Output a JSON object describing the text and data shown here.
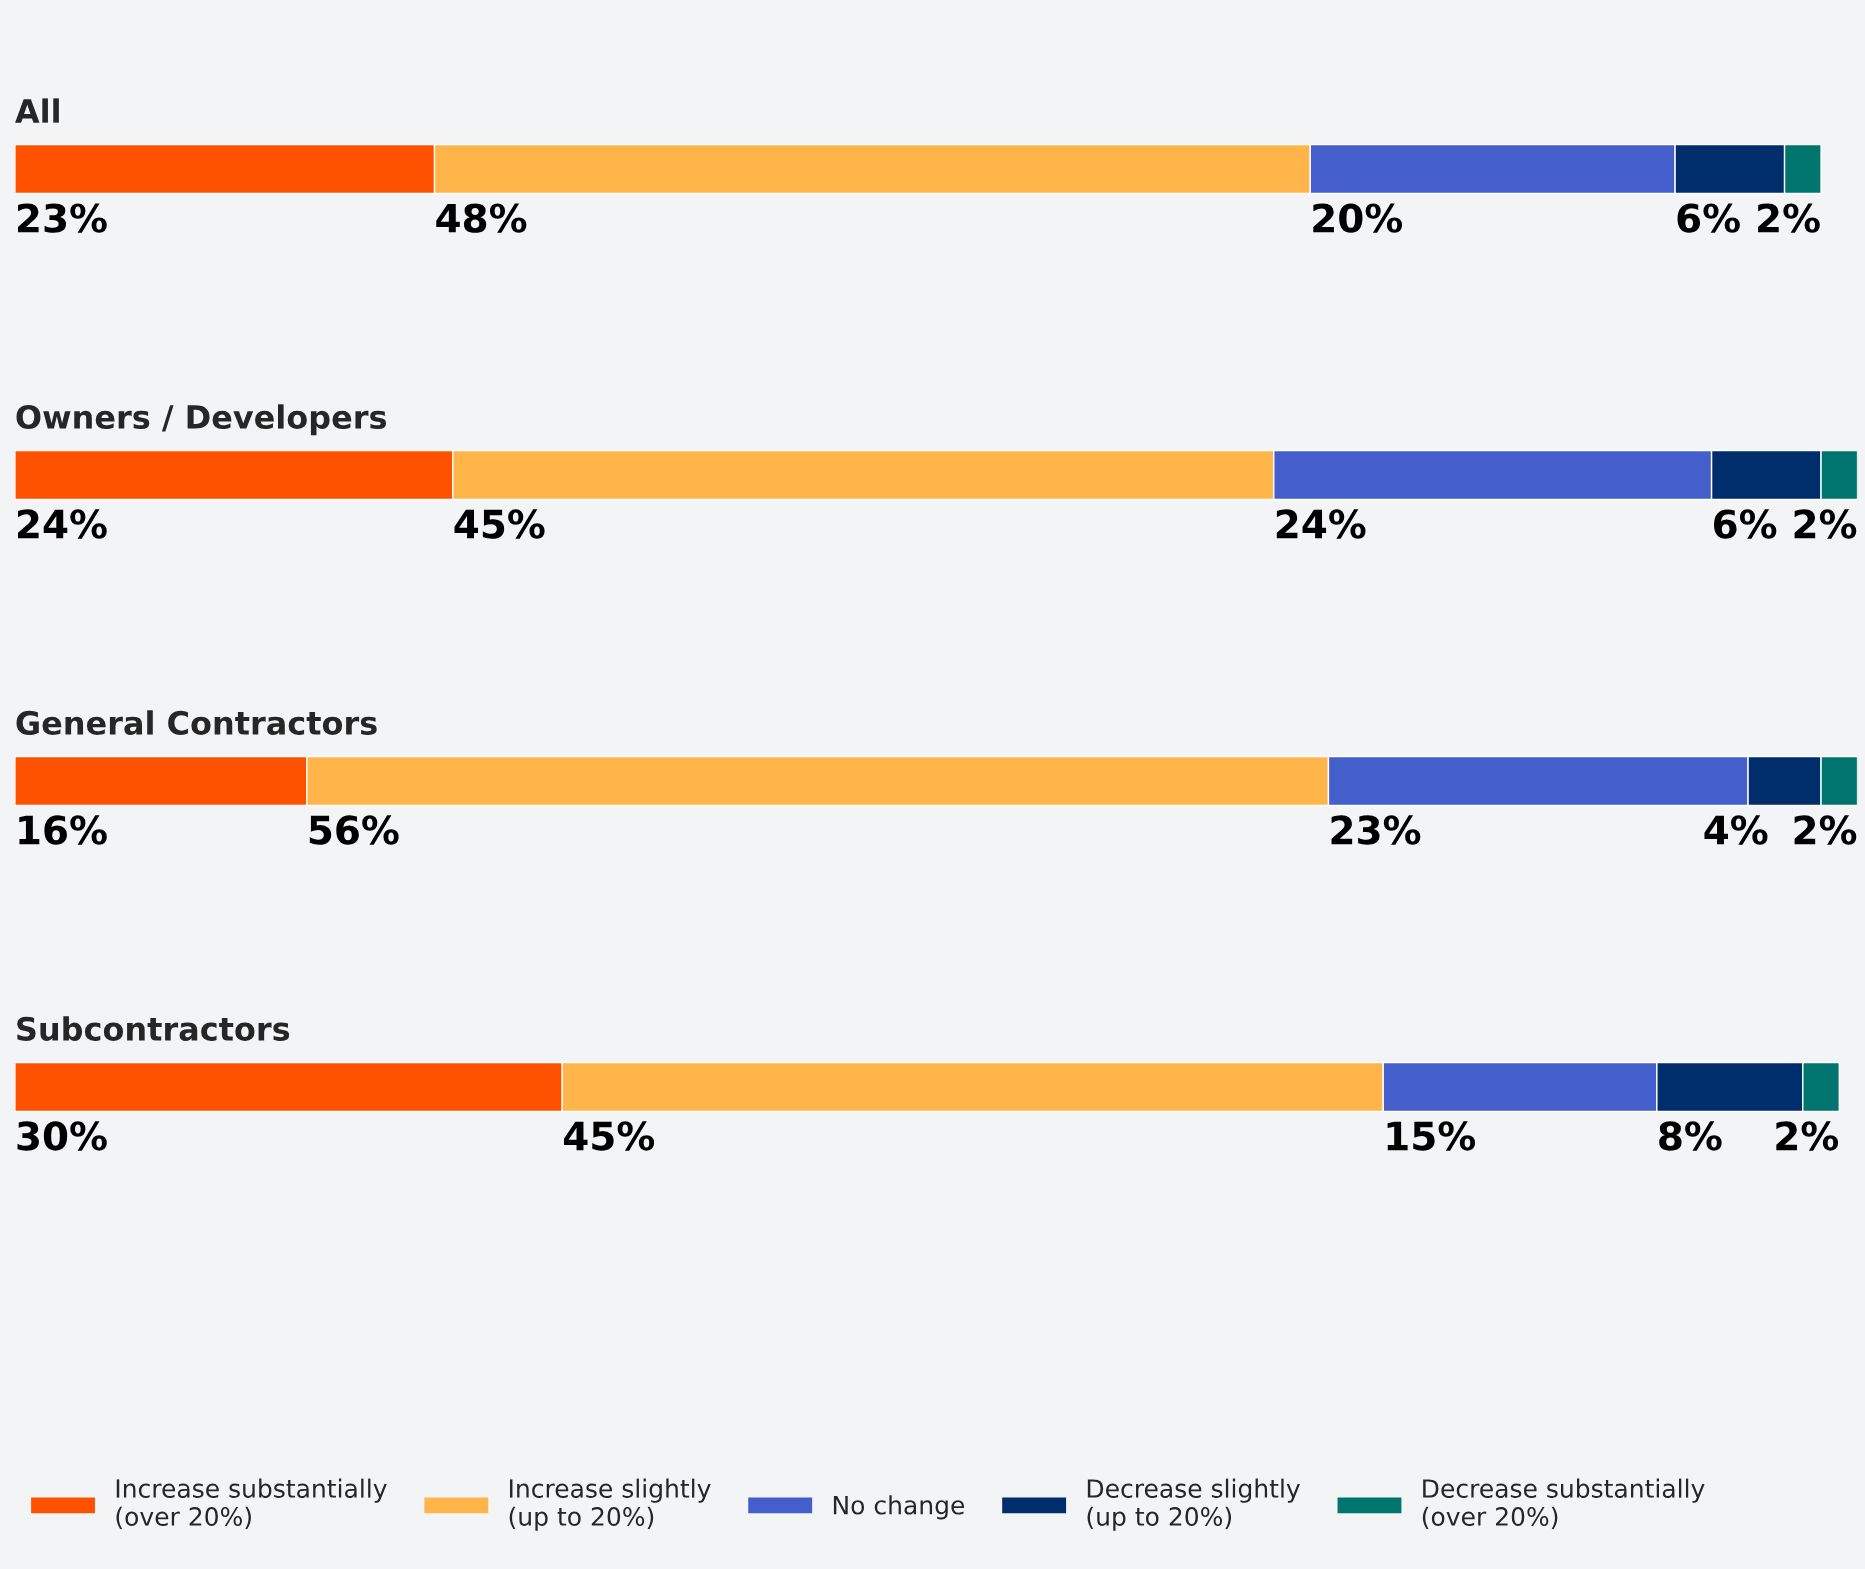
{
  "chart_data": {
    "type": "bar",
    "orientation": "horizontal",
    "stacked": true,
    "legend": "bottom",
    "categories": [
      "All",
      "Owners / Developers",
      "General Contractors",
      "Subcontractors"
    ],
    "series": [
      {
        "name": "Increase substantially\n(over 20%)",
        "color": "#ff5200",
        "values": [
          23,
          24,
          16,
          30
        ],
        "value_labels": [
          "23%",
          "24%",
          "16%",
          "30%"
        ]
      },
      {
        "name": "Increase slightly\n(up to 20%)",
        "color": "#ffb54a",
        "values": [
          48,
          45,
          56,
          45
        ],
        "value_labels": [
          "48%",
          "45%",
          "56%",
          "45%"
        ]
      },
      {
        "name": "No change",
        "color": "#445fcb",
        "values": [
          20,
          24,
          23,
          15
        ],
        "value_labels": [
          "20%",
          "24%",
          "23%",
          "15%"
        ]
      },
      {
        "name": "Decrease slightly\n(up to 20%)",
        "color": "#002d6b",
        "values": [
          6,
          6,
          4,
          8
        ],
        "value_labels": [
          "6%",
          "6%",
          "4%",
          "8%"
        ]
      },
      {
        "name": "Decrease substantially\n(over 20%)",
        "color": "#00756e",
        "values": [
          2,
          2,
          2,
          2
        ],
        "value_labels": [
          "2%",
          "2%",
          "2%",
          "2%"
        ]
      }
    ]
  }
}
